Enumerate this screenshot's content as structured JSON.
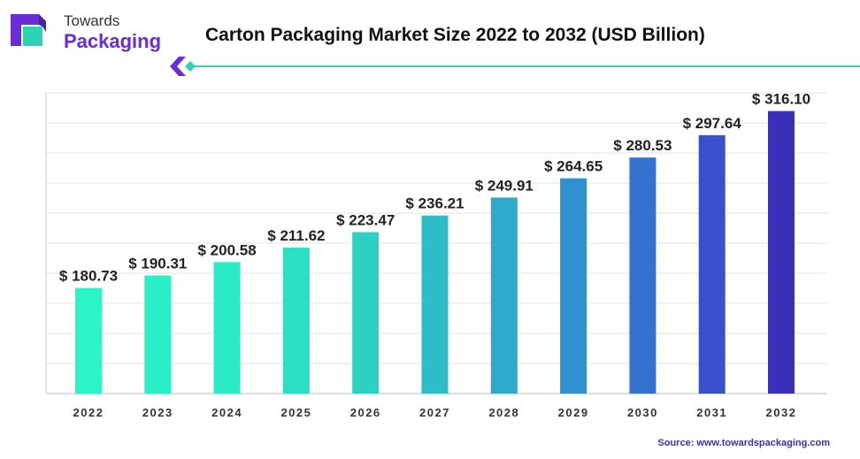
{
  "brand": {
    "line1": "Towards",
    "line2": "Packaging",
    "accent_color": "#6a2bd9",
    "teal_color": "#2ad4b4"
  },
  "title": "Carton Packaging Market Size 2022 to 2032 (USD Billion)",
  "source": "Source: www.towardspackaging.com",
  "source_color": "#3a2fb8",
  "chart_data": {
    "type": "bar",
    "categories": [
      "2022",
      "2023",
      "2024",
      "2025",
      "2026",
      "2027",
      "2028",
      "2029",
      "2030",
      "2031",
      "2032"
    ],
    "values": [
      180.73,
      190.31,
      200.58,
      211.62,
      223.47,
      236.21,
      249.91,
      264.65,
      280.53,
      297.64,
      316.1
    ],
    "labels": [
      "$ 180.73",
      "$ 190.31",
      "$ 200.58",
      "$ 211.62",
      "$ 223.47",
      "$ 236.21",
      "$ 249.91",
      "$ 264.65",
      "$ 280.53",
      "$ 297.64",
      "$ 316.10"
    ],
    "colors": [
      "#2af5c8",
      "#2af0c8",
      "#2bebc6",
      "#2ce0c4",
      "#2dd1c3",
      "#2ebdc8",
      "#2fa8cc",
      "#3190d0",
      "#3572d0",
      "#3a4fcb",
      "#3a2fb8"
    ],
    "title": "",
    "xlabel": "",
    "ylabel": "",
    "ylim": [
      100,
      330
    ],
    "grid": true,
    "legend": "none"
  }
}
